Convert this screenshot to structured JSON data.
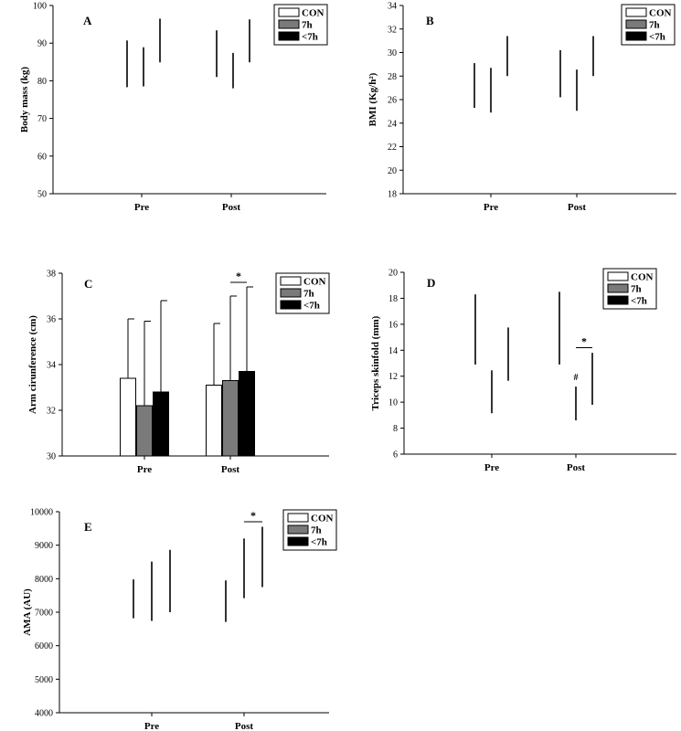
{
  "colors": {
    "CON": "#ffffff",
    "7h": "#7a7a7a",
    "<7h": "#000000",
    "axis": "#000000"
  },
  "chart_data": [
    {
      "panel": "A",
      "type": "bar",
      "ylabel": "Body mass (kg)",
      "ylim": [
        50,
        100
      ],
      "yticks": [
        50,
        60,
        70,
        80,
        90,
        100
      ],
      "categories": [
        "Pre",
        "Post"
      ],
      "legend": [
        "CON",
        "7h",
        "<7h"
      ],
      "legend_position": "top-right",
      "bars_visible": false,
      "series": [
        {
          "name": "CON",
          "values": [
            84.5,
            87.2
          ],
          "error": [
            6.2,
            6.2
          ]
        },
        {
          "name": "7h",
          "values": [
            83.7,
            82.7
          ],
          "error": [
            5.2,
            4.7
          ]
        },
        {
          "name": "<7h",
          "values": [
            90.7,
            90.6
          ],
          "error": [
            5.8,
            5.7
          ]
        }
      ],
      "annotations": []
    },
    {
      "panel": "B",
      "type": "bar",
      "ylabel": "BMI (Kg/h²)",
      "ylim": [
        18,
        34
      ],
      "yticks": [
        18,
        20,
        22,
        24,
        26,
        28,
        30,
        32,
        34
      ],
      "categories": [
        "Pre",
        "Post"
      ],
      "legend": [
        "CON",
        "7h",
        "<7h"
      ],
      "legend_position": "top-right",
      "bars_visible": false,
      "series": [
        {
          "name": "CON",
          "values": [
            27.2,
            28.2
          ],
          "error": [
            1.9,
            2.0
          ]
        },
        {
          "name": "7h",
          "values": [
            26.8,
            26.8
          ],
          "error": [
            1.9,
            1.75
          ]
        },
        {
          "name": "<7h",
          "values": [
            29.7,
            29.7
          ],
          "error": [
            1.7,
            1.7
          ]
        }
      ],
      "annotations": []
    },
    {
      "panel": "C",
      "type": "bar",
      "ylabel": "Arm cirunference (cm)",
      "ylim": [
        30,
        38
      ],
      "yticks": [
        30,
        32,
        34,
        36,
        38
      ],
      "categories": [
        "Pre",
        "Post"
      ],
      "legend": [
        "CON",
        "7h",
        "<7h"
      ],
      "legend_position": "top-right",
      "bars_visible": true,
      "series": [
        {
          "name": "CON",
          "values": [
            33.4,
            33.1
          ],
          "error": [
            2.6,
            2.7
          ]
        },
        {
          "name": "7h",
          "values": [
            32.2,
            33.3
          ],
          "error": [
            3.7,
            3.7
          ]
        },
        {
          "name": "<7h",
          "values": [
            32.8,
            33.7
          ],
          "error": [
            4.0,
            3.7
          ]
        }
      ],
      "annotations": [
        {
          "text": "*",
          "category": "Post",
          "between": [
            "7h",
            "<7h"
          ],
          "y": 37.6
        }
      ]
    },
    {
      "panel": "D",
      "type": "bar",
      "ylabel": "Triceps skinfold (mm)",
      "ylim": [
        6,
        20
      ],
      "yticks": [
        6,
        8,
        10,
        12,
        14,
        16,
        18,
        20
      ],
      "categories": [
        "Pre",
        "Post"
      ],
      "legend": [
        "CON",
        "7h",
        "<7h"
      ],
      "legend_position": "top-right",
      "bars_visible": false,
      "series": [
        {
          "name": "CON",
          "values": [
            15.6,
            15.7
          ],
          "error": [
            2.7,
            2.8
          ]
        },
        {
          "name": "7h",
          "values": [
            10.8,
            9.9
          ],
          "error": [
            1.65,
            1.3
          ]
        },
        {
          "name": "<7h",
          "values": [
            13.7,
            11.8
          ],
          "error": [
            2.05,
            2.0
          ]
        }
      ],
      "annotations": [
        {
          "text": "#",
          "category": "Post",
          "series": "7h",
          "y": 11.7
        },
        {
          "text": "*",
          "category": "Post",
          "between": [
            "7h",
            "<7h"
          ],
          "y": 14.2
        }
      ]
    },
    {
      "panel": "E",
      "type": "bar",
      "ylabel": "AMA (AU)",
      "ylim": [
        4000,
        10000
      ],
      "yticks": [
        4000,
        5000,
        6000,
        7000,
        8000,
        9000,
        10000
      ],
      "categories": [
        "Pre",
        "Post"
      ],
      "legend": [
        "CON",
        "7h",
        "<7h"
      ],
      "legend_position": "top-right",
      "bars_visible": false,
      "series": [
        {
          "name": "CON",
          "values": [
            7400,
            7330
          ],
          "error": [
            580,
            620
          ]
        },
        {
          "name": "7h",
          "values": [
            7625,
            8310
          ],
          "error": [
            885,
            890
          ]
        },
        {
          "name": "<7h",
          "values": [
            7930,
            8650
          ],
          "error": [
            930,
            900
          ]
        }
      ],
      "annotations": [
        {
          "text": "*",
          "category": "Post",
          "between": [
            "7h",
            "<7h"
          ],
          "y": 9700
        }
      ]
    }
  ]
}
